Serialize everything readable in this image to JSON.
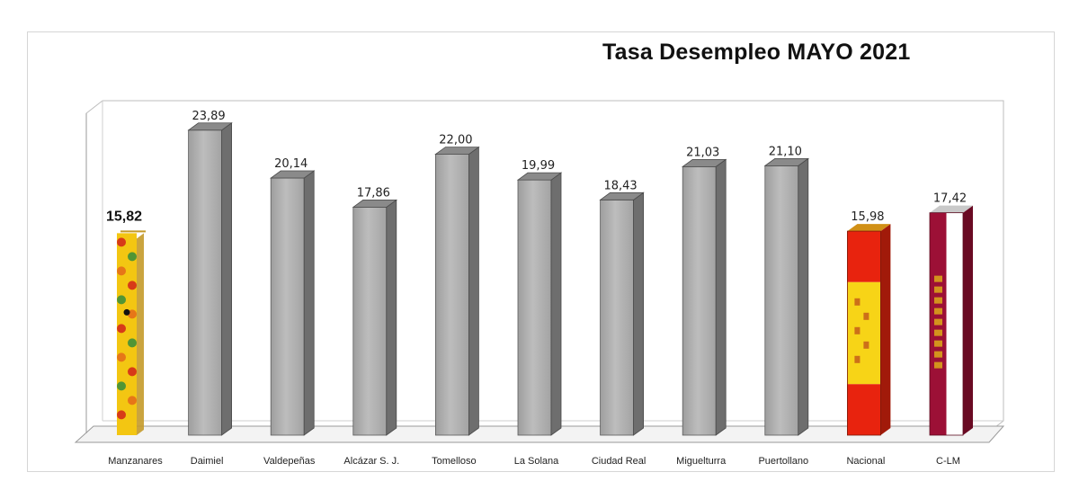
{
  "chart_data": {
    "type": "bar",
    "title": "Tasa Desempleo MAYO 2021",
    "categories": [
      "Manzanares",
      "Daimiel",
      "Valdepeñas",
      "Alcázar S. J.",
      "Tomelloso",
      "La Solana",
      "Ciudad Real",
      "Miguelturra",
      "Puertollano",
      "Nacional",
      "C-LM"
    ],
    "values": [
      15.82,
      23.89,
      20.14,
      17.86,
      22.0,
      19.99,
      18.43,
      21.03,
      21.1,
      15.98,
      17.42
    ],
    "value_labels": [
      "15,82",
      "23,89",
      "20,14",
      "17,86",
      "22,00",
      "19,99",
      "18,43",
      "21,03",
      "21,10",
      "15,98",
      "17,42"
    ],
    "bar_styles": [
      "manzanares-flag",
      "gray",
      "gray",
      "gray",
      "gray",
      "gray",
      "gray",
      "gray",
      "gray",
      "spain-flag",
      "clm-flag"
    ],
    "ylim": [
      0,
      25
    ],
    "grid": false,
    "legend": "none",
    "colors": {
      "bar_front": "#a9a9a9",
      "bar_side": "#6e6e6e",
      "bar_top": "#8a8a8a",
      "spain_red": "#e8230e",
      "spain_yellow": "#f7d417",
      "clm_red": "#9c1036",
      "manzanares_yellow": "#f3c612",
      "manzanares_red": "#d42a1a",
      "manzanares_green": "#3f8f3a"
    }
  }
}
